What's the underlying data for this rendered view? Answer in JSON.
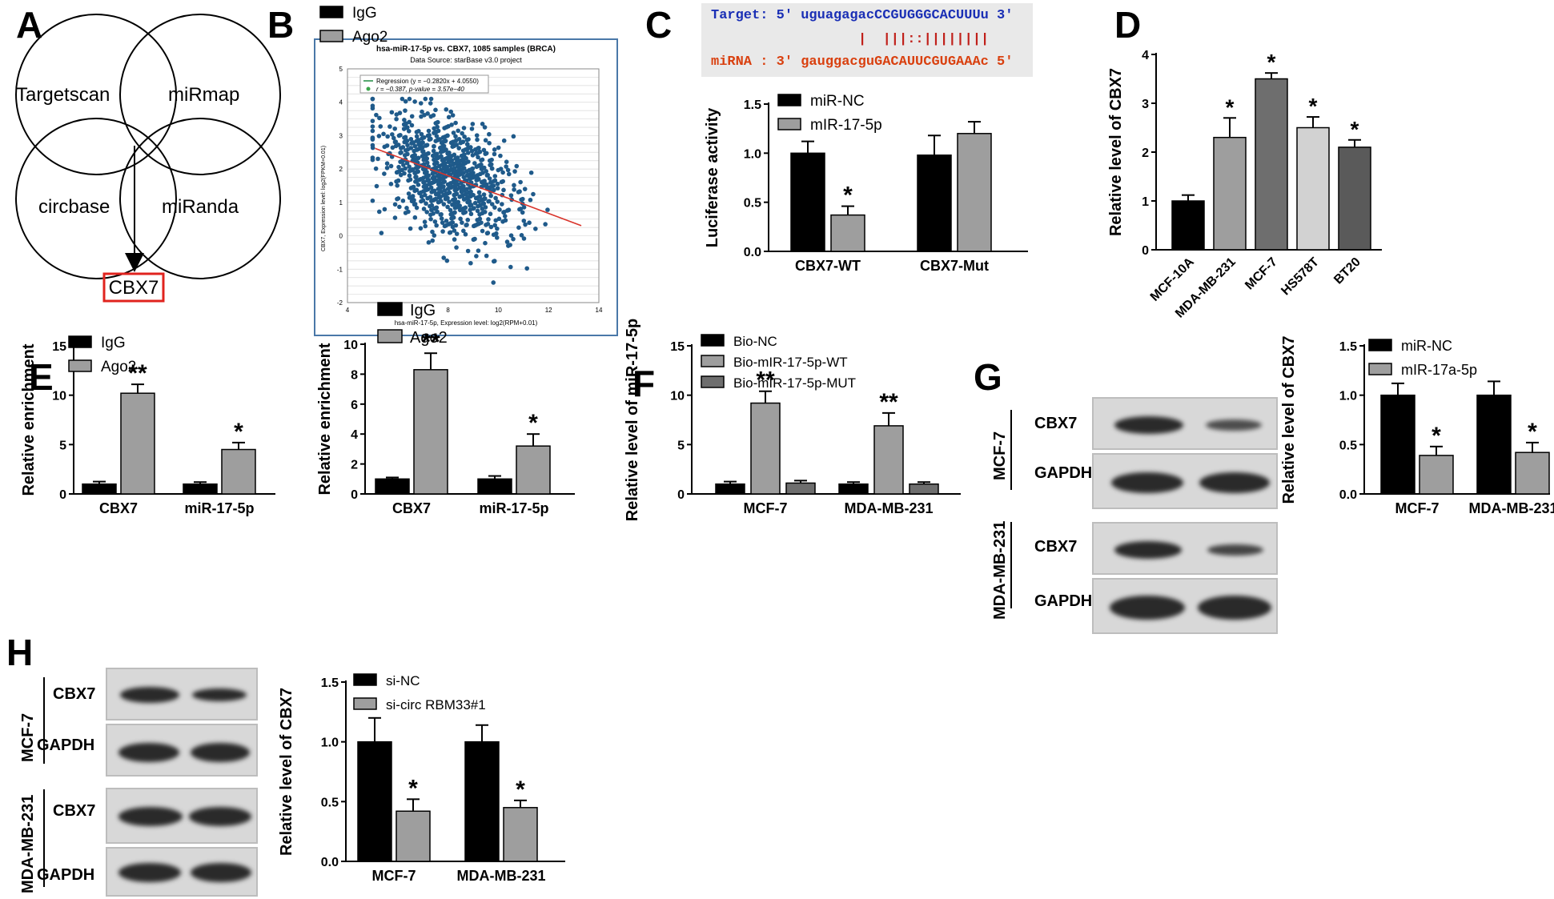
{
  "panels": {
    "A": {
      "letter": "A",
      "circles": [
        "Targetscan",
        "miRmap",
        "circbase",
        "miRanda"
      ],
      "result": "CBX7"
    },
    "B": {
      "letter": "B",
      "title": "hsa-miR-17-5p vs. CBX7, 1085 samples (BRCA)",
      "subtitle": "Data Source: starBase v3.0 project",
      "legend_regression": "Regression (y = −0.2820x + 4.0550)",
      "legend_stats": "r = −0.387, p-value = 3.57e−40",
      "xlabel": "hsa-miR-17-5p, Expression level: log2(RPM+0.01)",
      "ylabel": "CBX7, Expression level: log2(FPKM+0.01)",
      "colors": {
        "points": "#1f5a8a",
        "line": "#d9342b"
      }
    },
    "C": {
      "letter": "C",
      "target_line": "Target: 5' uguagagacCCGUGGGCACUUUu 3'",
      "pair_line": "|  |||::||||||||",
      "mirna_line": "miRNA : 3' gauggacguGACAUUCGUGAAAc 5'",
      "colors": {
        "target": "#1a2fb5",
        "mirna": "#d9400f",
        "pairs": "#c0201a"
      }
    },
    "D": {
      "letter": "D"
    },
    "E": {
      "letter": "E"
    },
    "F": {
      "letter": "F"
    },
    "G": {
      "letter": "G",
      "blots": {
        "cell1": "MCF-7",
        "cell2": "MDA-MB-231",
        "band1": "CBX7",
        "band2": "GAPDH"
      }
    },
    "H": {
      "letter": "H",
      "blots": {
        "cell1": "MCF-7",
        "cell2": "MDA-MB-231",
        "band1": "CBX7",
        "band2": "GAPDH"
      }
    }
  },
  "chart_data": [
    {
      "id": "B-scatter",
      "type": "scatter",
      "title": "hsa-miR-17-5p vs. CBX7, 1085 samples (BRCA)",
      "xlim": [
        4,
        14
      ],
      "ylim": [
        -2,
        5
      ],
      "xticks": [
        4,
        6,
        8,
        10,
        12,
        14
      ],
      "yticks": [
        -2,
        -1,
        0,
        1,
        2,
        3,
        4,
        5
      ],
      "regression": {
        "slope": -0.282,
        "intercept": 4.055,
        "x_range": [
          5.1,
          13.3
        ]
      },
      "grid": true
    },
    {
      "id": "C-bar",
      "type": "bar",
      "categories": [
        "CBX7-WT",
        "CBX7-Mut"
      ],
      "series": [
        {
          "name": "miR-NC",
          "values": [
            1.0,
            0.98
          ],
          "errors": [
            0.12,
            0.2
          ],
          "color": "#000000"
        },
        {
          "name": "mIR-17-5p",
          "values": [
            0.37,
            1.2
          ],
          "errors": [
            0.09,
            0.12
          ],
          "color": "#9e9e9e"
        }
      ],
      "stars": [
        [
          "",
          ""
        ],
        [
          "*",
          ""
        ]
      ],
      "ylabel": "Luciferase activity",
      "ylim": [
        0,
        1.5
      ],
      "yticks": [
        "0.0",
        "0.5",
        "1.0",
        "1.5"
      ],
      "legend": "top-left"
    },
    {
      "id": "D-bar",
      "type": "bar",
      "categories": [
        "MCF-10A",
        "MDA-MB-231",
        "MCF-7",
        "HS578T",
        "BT20"
      ],
      "values": [
        1.0,
        2.3,
        3.5,
        2.5,
        2.1
      ],
      "errors": [
        0.12,
        0.4,
        0.12,
        0.22,
        0.15
      ],
      "colors": [
        "#000000",
        "#9e9e9e",
        "#6e6e6e",
        "#d2d2d2",
        "#5a5a5a"
      ],
      "stars": [
        "",
        "*",
        "*",
        "*",
        "*"
      ],
      "ylabel": "Relative level of CBX7",
      "ylim": [
        0,
        4
      ],
      "yticks": [
        "0",
        "1",
        "2",
        "3",
        "4"
      ]
    },
    {
      "id": "E-bar-1",
      "type": "bar",
      "categories": [
        "CBX7",
        "miR-17-5p"
      ],
      "series": [
        {
          "name": "IgG",
          "values": [
            1.0,
            1.0
          ],
          "errors": [
            0.25,
            0.2
          ],
          "color": "#000000"
        },
        {
          "name": "Ago2",
          "values": [
            10.2,
            4.5
          ],
          "errors": [
            0.9,
            0.7
          ],
          "color": "#9e9e9e"
        }
      ],
      "stars": [
        [
          "",
          ""
        ],
        [
          "**",
          "*"
        ]
      ],
      "ylabel": "Relative enrichment",
      "ylim": [
        0,
        15
      ],
      "yticks": [
        "0",
        "5",
        "10",
        "15"
      ],
      "legend": "top-left"
    },
    {
      "id": "E-bar-2",
      "type": "bar",
      "categories": [
        "CBX7",
        "miR-17-5p"
      ],
      "series": [
        {
          "name": "IgG",
          "values": [
            1.0,
            1.0
          ],
          "errors": [
            0.1,
            0.2
          ],
          "color": "#000000"
        },
        {
          "name": "Ago2",
          "values": [
            8.3,
            3.2
          ],
          "errors": [
            1.1,
            0.8
          ],
          "color": "#9e9e9e"
        }
      ],
      "stars": [
        [
          "",
          ""
        ],
        [
          "**",
          "*"
        ]
      ],
      "ylabel": "Relative enrichment",
      "ylim": [
        0,
        10
      ],
      "yticks": [
        "0",
        "2",
        "4",
        "6",
        "8",
        "10"
      ],
      "legend": "top-left"
    },
    {
      "id": "F-bar",
      "type": "bar",
      "categories": [
        "MCF-7",
        "MDA-MB-231"
      ],
      "series": [
        {
          "name": "Bio-NC",
          "values": [
            1.0,
            1.0
          ],
          "errors": [
            0.25,
            0.2
          ],
          "color": "#000000"
        },
        {
          "name": "Bio-mIR-17-5p-WT",
          "values": [
            9.2,
            6.9
          ],
          "errors": [
            1.2,
            1.3
          ],
          "color": "#9e9e9e"
        },
        {
          "name": "Bio-mIR-17-5p-MUT",
          "values": [
            1.1,
            1.0
          ],
          "errors": [
            0.25,
            0.2
          ],
          "color": "#6e6e6e"
        }
      ],
      "stars": [
        [
          "",
          ""
        ],
        [
          "**",
          "**"
        ],
        [
          "",
          ""
        ]
      ],
      "ylabel": "Relative level of miR-17-5p",
      "ylim": [
        0,
        15
      ],
      "yticks": [
        "0",
        "5",
        "10",
        "15"
      ],
      "legend": "top-left"
    },
    {
      "id": "G-bar",
      "type": "bar",
      "categories": [
        "MCF-7",
        "MDA-MB-231"
      ],
      "series": [
        {
          "name": "miR-NC",
          "values": [
            1.0,
            1.0
          ],
          "errors": [
            0.12,
            0.14
          ],
          "color": "#000000"
        },
        {
          "name": "mIR-17a-5p",
          "values": [
            0.39,
            0.42
          ],
          "errors": [
            0.09,
            0.1
          ],
          "color": "#9e9e9e"
        }
      ],
      "stars": [
        [
          "",
          ""
        ],
        [
          "*",
          "*"
        ]
      ],
      "ylabel": "Relative level of CBX7",
      "ylim": [
        0,
        1.5
      ],
      "yticks": [
        "0.0",
        "0.5",
        "1.0",
        "1.5"
      ],
      "legend": "top-left"
    },
    {
      "id": "H-bar",
      "type": "bar",
      "categories": [
        "MCF-7",
        "MDA-MB-231"
      ],
      "series": [
        {
          "name": "si-NC",
          "values": [
            1.0,
            1.0
          ],
          "errors": [
            0.2,
            0.14
          ],
          "color": "#000000"
        },
        {
          "name": "si-circ RBM33#1",
          "values": [
            0.42,
            0.45
          ],
          "errors": [
            0.1,
            0.06
          ],
          "color": "#9e9e9e"
        }
      ],
      "stars": [
        [
          "",
          ""
        ],
        [
          "*",
          "*"
        ]
      ],
      "ylabel": "Relative level of CBX7",
      "ylim": [
        0,
        1.5
      ],
      "yticks": [
        "0.0",
        "0.5",
        "1.0",
        "1.5"
      ],
      "legend": "top-left"
    }
  ]
}
